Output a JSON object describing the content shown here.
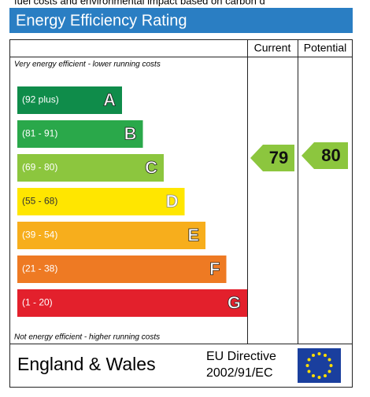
{
  "top_text": "fuel costs and environmental impact based on carbon d",
  "title": "Energy Efficiency Rating",
  "columns": [
    "Current",
    "Potential"
  ],
  "top_note": "Very energy efficient - lower running costs",
  "bottom_note": "Not energy efficient - higher running costs",
  "bands": [
    {
      "range": "(92 plus)",
      "letter": "A",
      "color": "#0f8c4a"
    },
    {
      "range": "(81 - 91)",
      "letter": "B",
      "color": "#2aa84a"
    },
    {
      "range": "(69 - 80)",
      "letter": "C",
      "color": "#8cc63e"
    },
    {
      "range": "(55 - 68)",
      "letter": "D",
      "color": "#ffe600"
    },
    {
      "range": "(39 - 54)",
      "letter": "E",
      "color": "#f7ae1c"
    },
    {
      "range": "(21 - 38)",
      "letter": "F",
      "color": "#ee7a23"
    },
    {
      "range": "(1 - 20)",
      "letter": "G",
      "color": "#e3202c"
    }
  ],
  "current": {
    "value": 79,
    "color": "#8cc63e"
  },
  "potential": {
    "value": 80,
    "color": "#8cc63e"
  },
  "footer": {
    "region": "England & Wales",
    "directive": [
      "EU Directive",
      "2002/91/EC"
    ]
  }
}
